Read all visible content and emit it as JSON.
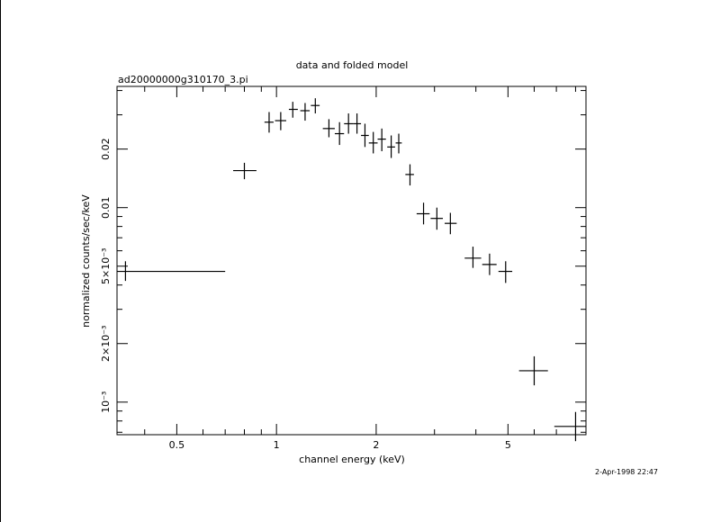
{
  "chart_data": {
    "type": "scatter",
    "title": "data and folded model",
    "subtitle": "ad20000000g310170_3.pi",
    "xlabel": "channel energy (keV)",
    "ylabel": "normalized counts/sec/keV",
    "timestamp": "2-Apr-1998 22:47",
    "x_scale": "log",
    "y_scale": "log",
    "xlim": [
      0.33,
      8.6
    ],
    "ylim": [
      0.00068,
      0.042
    ],
    "grid": false,
    "x_tick_labels": [
      {
        "value": 0.5,
        "label": "0.5"
      },
      {
        "value": 1,
        "label": "1"
      },
      {
        "value": 2,
        "label": "2"
      },
      {
        "value": 5,
        "label": "5"
      }
    ],
    "y_tick_labels": [
      {
        "value": 0.001,
        "label": "10⁻³"
      },
      {
        "value": 0.002,
        "label": "2×10⁻³"
      },
      {
        "value": 0.005,
        "label": "5×10⁻³"
      },
      {
        "value": 0.01,
        "label": "0.01"
      },
      {
        "value": 0.02,
        "label": "0.02"
      }
    ],
    "series": [
      {
        "points": [
          {
            "x": 0.35,
            "xlo": 0.33,
            "xhi": 0.7,
            "y": 0.0047,
            "ylo": 0.0042,
            "yhi": 0.0053
          },
          {
            "x": 0.8,
            "xlo": 0.74,
            "xhi": 0.87,
            "y": 0.0155,
            "ylo": 0.014,
            "yhi": 0.017
          },
          {
            "x": 0.95,
            "xlo": 0.92,
            "xhi": 0.98,
            "y": 0.0275,
            "ylo": 0.0243,
            "yhi": 0.031
          },
          {
            "x": 1.03,
            "xlo": 0.99,
            "xhi": 1.07,
            "y": 0.028,
            "ylo": 0.025,
            "yhi": 0.031
          },
          {
            "x": 1.12,
            "xlo": 1.09,
            "xhi": 1.16,
            "y": 0.032,
            "ylo": 0.029,
            "yhi": 0.035
          },
          {
            "x": 1.22,
            "xlo": 1.18,
            "xhi": 1.26,
            "y": 0.0315,
            "ylo": 0.028,
            "yhi": 0.0345
          },
          {
            "x": 1.31,
            "xlo": 1.27,
            "xhi": 1.35,
            "y": 0.0335,
            "ylo": 0.0305,
            "yhi": 0.0365
          },
          {
            "x": 1.44,
            "xlo": 1.38,
            "xhi": 1.5,
            "y": 0.0255,
            "ylo": 0.023,
            "yhi": 0.0285
          },
          {
            "x": 1.55,
            "xlo": 1.5,
            "xhi": 1.6,
            "y": 0.024,
            "ylo": 0.021,
            "yhi": 0.0275
          },
          {
            "x": 1.65,
            "xlo": 1.6,
            "xhi": 1.71,
            "y": 0.027,
            "ylo": 0.024,
            "yhi": 0.0305
          },
          {
            "x": 1.75,
            "xlo": 1.71,
            "xhi": 1.8,
            "y": 0.027,
            "ylo": 0.024,
            "yhi": 0.0305
          },
          {
            "x": 1.85,
            "xlo": 1.8,
            "xhi": 1.9,
            "y": 0.0235,
            "ylo": 0.0205,
            "yhi": 0.027
          },
          {
            "x": 1.96,
            "xlo": 1.9,
            "xhi": 2.02,
            "y": 0.0215,
            "ylo": 0.019,
            "yhi": 0.0245
          },
          {
            "x": 2.08,
            "xlo": 2.02,
            "xhi": 2.14,
            "y": 0.0225,
            "ylo": 0.0195,
            "yhi": 0.0255
          },
          {
            "x": 2.22,
            "xlo": 2.16,
            "xhi": 2.28,
            "y": 0.0205,
            "ylo": 0.018,
            "yhi": 0.0235
          },
          {
            "x": 2.34,
            "xlo": 2.29,
            "xhi": 2.39,
            "y": 0.0215,
            "ylo": 0.019,
            "yhi": 0.024
          },
          {
            "x": 2.53,
            "xlo": 2.45,
            "xhi": 2.6,
            "y": 0.0148,
            "ylo": 0.013,
            "yhi": 0.0167
          },
          {
            "x": 2.78,
            "xlo": 2.65,
            "xhi": 2.9,
            "y": 0.0093,
            "ylo": 0.0082,
            "yhi": 0.0106
          },
          {
            "x": 3.05,
            "xlo": 2.92,
            "xhi": 3.18,
            "y": 0.0088,
            "ylo": 0.0077,
            "yhi": 0.01
          },
          {
            "x": 3.35,
            "xlo": 3.22,
            "xhi": 3.5,
            "y": 0.0083,
            "ylo": 0.0073,
            "yhi": 0.0094
          },
          {
            "x": 3.92,
            "xlo": 3.7,
            "xhi": 4.15,
            "y": 0.0055,
            "ylo": 0.0049,
            "yhi": 0.0063
          },
          {
            "x": 4.4,
            "xlo": 4.18,
            "xhi": 4.62,
            "y": 0.0051,
            "ylo": 0.0045,
            "yhi": 0.0058
          },
          {
            "x": 4.92,
            "xlo": 4.68,
            "xhi": 5.15,
            "y": 0.0047,
            "ylo": 0.0041,
            "yhi": 0.0053
          },
          {
            "x": 6.0,
            "xlo": 5.4,
            "xhi": 6.6,
            "y": 0.00145,
            "ylo": 0.00122,
            "yhi": 0.00172
          },
          {
            "x": 8.0,
            "xlo": 6.9,
            "xhi": 8.6,
            "y": 0.00075,
            "ylo": 0.00063,
            "yhi": 0.00089
          }
        ]
      }
    ]
  }
}
